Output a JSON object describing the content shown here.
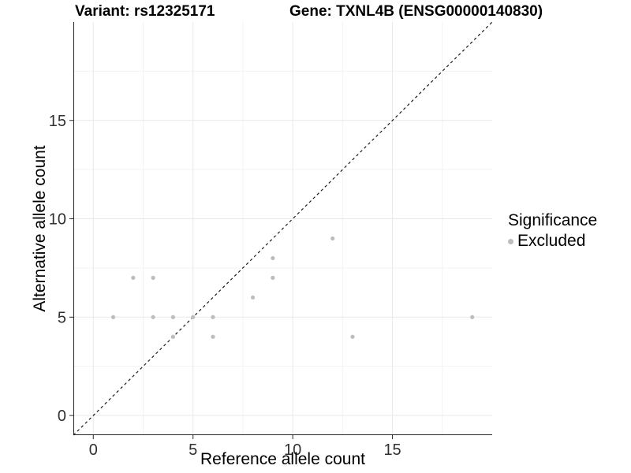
{
  "header": {
    "variant_title": "Variant: rs12325171",
    "gene_title": "Gene: TXNL4B (ENSG00000140830)"
  },
  "chart_data": {
    "type": "scatter",
    "title_left": "Variant: rs12325171",
    "title_right": "Gene: TXNL4B (ENSG00000140830)",
    "xlabel": "Reference allele count",
    "ylabel": "Alternative allele count",
    "xlim": [
      -1,
      20
    ],
    "ylim": [
      -1,
      20
    ],
    "x_ticks": [
      0,
      5,
      10,
      15
    ],
    "y_ticks": [
      0,
      5,
      10,
      15
    ],
    "minor_gridlines": [
      2.5,
      7.5,
      12.5,
      17.5
    ],
    "grid": true,
    "points": [
      {
        "x": 1,
        "y": 5
      },
      {
        "x": 2,
        "y": 7
      },
      {
        "x": 3,
        "y": 5
      },
      {
        "x": 3,
        "y": 7
      },
      {
        "x": 4,
        "y": 4
      },
      {
        "x": 4,
        "y": 5
      },
      {
        "x": 5,
        "y": 5
      },
      {
        "x": 6,
        "y": 4
      },
      {
        "x": 6,
        "y": 5
      },
      {
        "x": 8,
        "y": 6
      },
      {
        "x": 9,
        "y": 7
      },
      {
        "x": 9,
        "y": 8
      },
      {
        "x": 12,
        "y": 9
      },
      {
        "x": 13,
        "y": 4
      },
      {
        "x": 19,
        "y": 5
      }
    ],
    "point_color": "#bdbdbd",
    "identity_line": {
      "slope": 1,
      "intercept": 0,
      "style": "dashed",
      "color": "#1a1a1a"
    },
    "legend": {
      "title": "Significance",
      "entries": [
        "Excluded"
      ],
      "position": "right"
    },
    "colors": {
      "axis_line": "#262626",
      "tick_label": "#303030",
      "grid_major": "#e9e9e9",
      "grid_minor": "#f3f3f3"
    }
  }
}
